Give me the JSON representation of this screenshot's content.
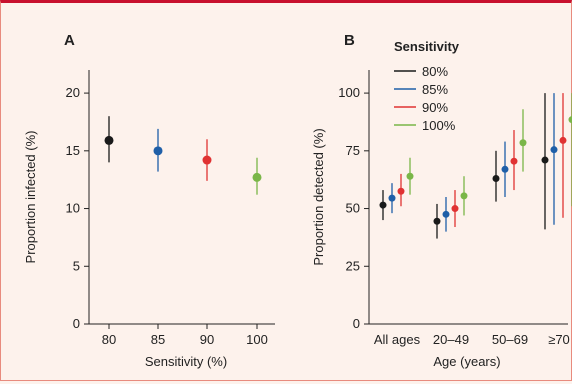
{
  "chart_data": [
    {
      "type": "scatter",
      "panel_label": "A",
      "title": "",
      "xlabel": "Sensitivity (%)",
      "ylabel": "Proportion infected (%)",
      "categories": [
        "80",
        "85",
        "90",
        "100"
      ],
      "ylim": [
        0,
        22
      ],
      "yticks": [
        0,
        5,
        10,
        15,
        20
      ],
      "grid": false,
      "points": [
        {
          "x": "80",
          "y": 15.9,
          "low": 14.0,
          "high": 18.0,
          "color": "#1a1a1a"
        },
        {
          "x": "85",
          "y": 15.0,
          "low": 13.2,
          "high": 16.9,
          "color": "#1f5fa8"
        },
        {
          "x": "90",
          "y": 14.2,
          "low": 12.4,
          "high": 16.0,
          "color": "#e03232"
        },
        {
          "x": "100",
          "y": 12.7,
          "low": 11.2,
          "high": 14.4,
          "color": "#7ab648"
        }
      ]
    },
    {
      "type": "scatter",
      "panel_label": "B",
      "title": "",
      "xlabel": "Age (years)",
      "ylabel": "Proportion detected (%)",
      "categories": [
        "All ages",
        "20–49",
        "50–69",
        "≥70"
      ],
      "ylim": [
        0,
        110
      ],
      "yticks": [
        0,
        25,
        50,
        75,
        100
      ],
      "grid": false,
      "legend": {
        "title": "Sensitivity",
        "position": "top-left"
      },
      "series": [
        {
          "name": "80%",
          "color": "#1a1a1a",
          "values": [
            51.5,
            44.5,
            63.0,
            71.0
          ],
          "low": [
            45.0,
            37.0,
            53.0,
            41.0
          ],
          "high": [
            58.0,
            52.0,
            75.0,
            100.0
          ]
        },
        {
          "name": "85%",
          "color": "#1f5fa8",
          "values": [
            54.5,
            47.5,
            67.0,
            75.5
          ],
          "low": [
            48.0,
            40.0,
            55.0,
            43.0
          ],
          "high": [
            61.0,
            55.0,
            79.0,
            100.0
          ]
        },
        {
          "name": "90%",
          "color": "#e03232",
          "values": [
            57.5,
            50.0,
            70.5,
            79.5
          ],
          "low": [
            51.0,
            42.0,
            58.0,
            46.0
          ],
          "high": [
            65.0,
            58.0,
            84.0,
            100.0
          ]
        },
        {
          "name": "100%",
          "color": "#7ab648",
          "values": [
            64.0,
            55.5,
            78.5,
            88.5
          ],
          "low": [
            56.0,
            47.0,
            66.0,
            51.0
          ],
          "high": [
            72.0,
            64.0,
            93.0,
            100.0
          ]
        }
      ]
    }
  ]
}
